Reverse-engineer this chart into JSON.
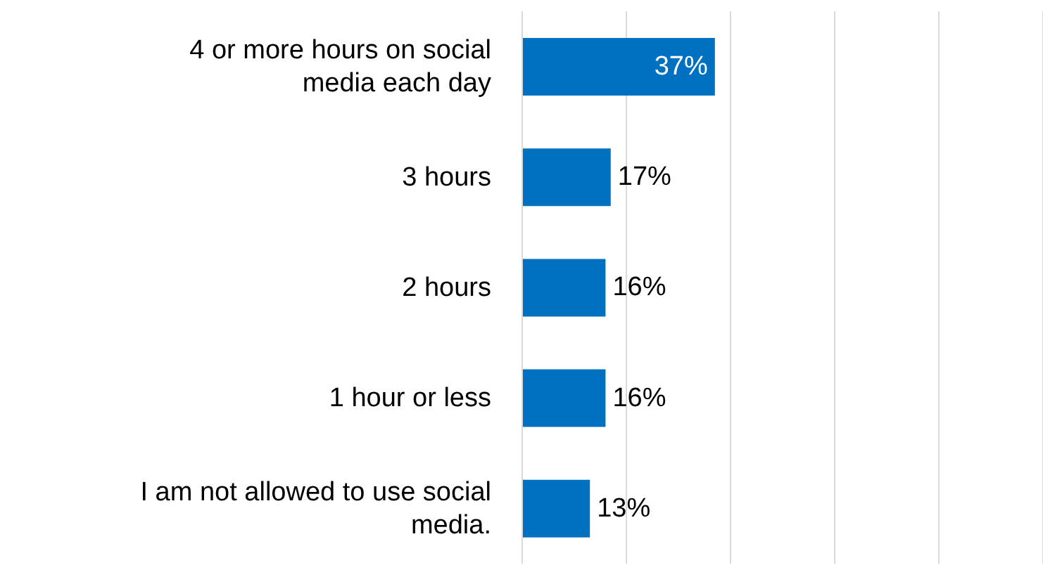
{
  "chart_data": {
    "type": "bar",
    "orientation": "horizontal",
    "categories": [
      "4 or more hours on social media each day",
      "3 hours",
      "2 hours",
      "1 hour or less",
      "I am not allowed to use social media."
    ],
    "values": [
      37,
      17,
      16,
      16,
      13
    ],
    "value_labels": [
      "37%",
      "17%",
      "16%",
      "16%",
      "13%"
    ],
    "color": "#0070c0",
    "xlim": [
      0,
      100
    ],
    "xticks": [
      {
        "value": 0,
        "label": null
      },
      {
        "value": 20,
        "label": null
      },
      {
        "value": 40,
        "label": null
      },
      {
        "value": 60,
        "label": null
      },
      {
        "value": 80,
        "label": null
      },
      {
        "value": 100,
        "label": null
      }
    ],
    "tick_labels": "y",
    "grid": "x"
  }
}
